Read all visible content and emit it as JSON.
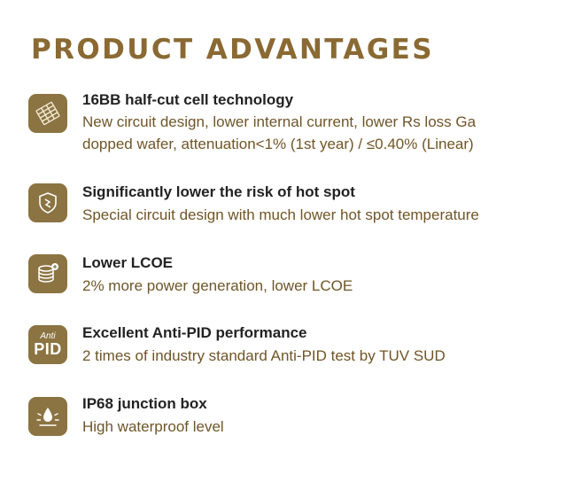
{
  "header": {
    "title": "PRODUCT ADVANTAGES"
  },
  "colors": {
    "accent": "#8a6a32",
    "icon_bg": "#8b7342",
    "description": "#6f5527",
    "heading": "#222222"
  },
  "advantages": [
    {
      "icon": "solar-cell-icon",
      "title": "16BB half-cut cell technology",
      "description": "New circuit design, lower internal current, lower Rs loss Ga\ndopped wafer, attenuation<1% (1st year) / ≤0.40% (Linear)"
    },
    {
      "icon": "shield-icon",
      "title": "Significantly lower the risk of hot spot",
      "description": "Special circuit design with much lower hot spot temperature"
    },
    {
      "icon": "coin-stack-icon",
      "title": "Lower LCOE",
      "description": "2% more power generation, lower LCOE"
    },
    {
      "icon": "anti-pid-icon",
      "icon_text": {
        "top": "Anti",
        "bottom": "PID"
      },
      "title": "Excellent Anti-PID performance",
      "description": "2 times of industry standard Anti-PID test by TUV SUD"
    },
    {
      "icon": "water-drop-icon",
      "title": "IP68 junction box",
      "description": "High waterproof level"
    }
  ]
}
